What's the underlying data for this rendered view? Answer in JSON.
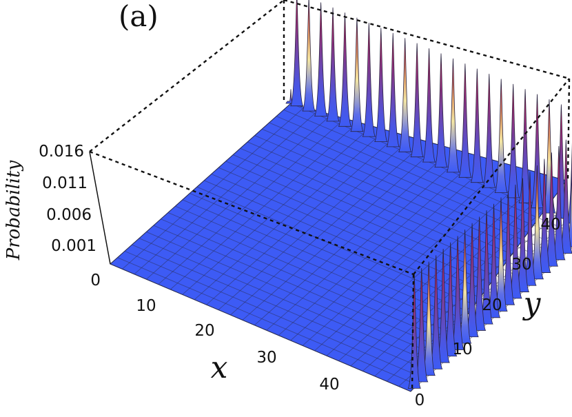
{
  "panel_label": "(a)",
  "chart_data": {
    "type": "surface3d",
    "title": "",
    "xlabel": "x",
    "ylabel": "y",
    "zlabel": "Probability",
    "x_range": [
      0,
      50
    ],
    "y_range": [
      0,
      50
    ],
    "z_range": [
      0,
      0.016
    ],
    "x_ticks": [
      "10",
      "20",
      "30",
      "40"
    ],
    "y_ticks": [
      "0",
      "10",
      "20",
      "30",
      "40"
    ],
    "z_ticks": [
      "0",
      "0.001",
      "0.006",
      "0.011",
      "0.016"
    ],
    "description_values": {
      "x_tick_values": [
        10,
        20,
        30,
        40
      ],
      "y_tick_values": [
        0,
        10,
        20,
        30,
        40
      ],
      "z_tick_values": [
        0,
        0.001,
        0.006,
        0.011,
        0.016
      ]
    },
    "peaks": {
      "along_back_x_edge": {
        "positions_x": [
          1,
          3,
          5,
          7,
          9,
          11,
          13,
          15,
          17,
          19,
          21,
          23,
          25,
          27,
          29,
          31,
          33,
          35,
          37,
          39,
          41,
          43,
          45,
          47,
          49
        ],
        "fixed_y": 50,
        "max_probability": 0.016
      },
      "along_right_y_edge": {
        "positions_y": [
          1,
          3,
          5,
          7,
          9,
          11,
          13,
          15,
          17,
          19,
          21,
          23,
          25,
          27,
          29,
          31,
          33,
          35,
          37,
          39,
          41,
          43,
          45,
          47,
          49
        ],
        "fixed_x": 50,
        "max_probability": 0.016
      },
      "corner_peak": {
        "x": 0,
        "y": 50,
        "probability": 0.002
      }
    },
    "colors": {
      "base": "#3d5bf5",
      "peak_top": "#d21f52",
      "peak_mid": "#6e3f9e",
      "peak_highlight": "#f1e089",
      "grid": "#2b2f57",
      "box": "#111111"
    }
  }
}
